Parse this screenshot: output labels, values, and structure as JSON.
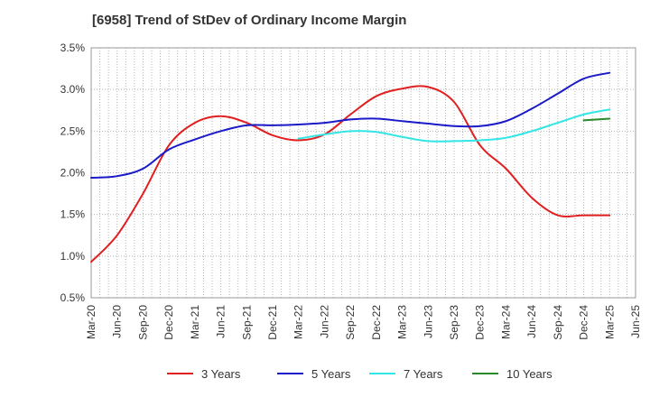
{
  "chart_data": {
    "type": "line",
    "title": "[6958]  Trend of StDev of Ordinary Income Margin",
    "xlabel": "",
    "ylabel": "",
    "x_ticks": [
      "Mar-20",
      "Jun-20",
      "Sep-20",
      "Dec-20",
      "Mar-21",
      "Jun-21",
      "Sep-21",
      "Dec-21",
      "Mar-22",
      "Jun-22",
      "Sep-22",
      "Dec-22",
      "Mar-23",
      "Jun-23",
      "Sep-23",
      "Dec-23",
      "Mar-24",
      "Jun-24",
      "Sep-24",
      "Dec-24",
      "Mar-25",
      "Jun-25"
    ],
    "y_ticks": [
      "0.5%",
      "1.0%",
      "1.5%",
      "2.0%",
      "2.5%",
      "3.0%",
      "3.5%"
    ],
    "ylim": [
      0.5,
      3.5
    ],
    "grid": "dotted both axes",
    "legend_position": "bottom",
    "series": [
      {
        "name": "3 Years",
        "color": "#e02020",
        "x": [
          "Mar-20",
          "Jun-20",
          "Sep-20",
          "Dec-20",
          "Mar-21",
          "Jun-21",
          "Sep-21",
          "Dec-21",
          "Mar-22",
          "Jun-22",
          "Sep-22",
          "Dec-22",
          "Mar-23",
          "Jun-23",
          "Sep-23",
          "Dec-23",
          "Mar-24",
          "Jun-24",
          "Sep-24",
          "Dec-24",
          "Mar-25"
        ],
        "values": [
          0.93,
          1.25,
          1.75,
          2.33,
          2.6,
          2.68,
          2.6,
          2.45,
          2.39,
          2.46,
          2.7,
          2.92,
          3.01,
          3.03,
          2.85,
          2.33,
          2.05,
          1.7,
          1.49,
          1.49,
          1.49
        ]
      },
      {
        "name": "5 Years",
        "color": "#1a1ac8",
        "x": [
          "Mar-20",
          "Jun-20",
          "Sep-20",
          "Dec-20",
          "Mar-21",
          "Jun-21",
          "Sep-21",
          "Dec-21",
          "Mar-22",
          "Jun-22",
          "Sep-22",
          "Dec-22",
          "Mar-23",
          "Jun-23",
          "Sep-23",
          "Dec-23",
          "Mar-24",
          "Jun-24",
          "Sep-24",
          "Dec-24",
          "Mar-25"
        ],
        "values": [
          1.94,
          1.96,
          2.05,
          2.28,
          2.4,
          2.5,
          2.57,
          2.57,
          2.58,
          2.6,
          2.64,
          2.65,
          2.62,
          2.59,
          2.56,
          2.56,
          2.62,
          2.77,
          2.95,
          3.13,
          3.2
        ]
      },
      {
        "name": "7 Years",
        "color": "#33e6e6",
        "x": [
          "Mar-22",
          "Jun-22",
          "Sep-22",
          "Dec-22",
          "Mar-23",
          "Jun-23",
          "Sep-23",
          "Dec-23",
          "Mar-24",
          "Jun-24",
          "Sep-24",
          "Dec-24",
          "Mar-25"
        ],
        "values": [
          2.41,
          2.46,
          2.5,
          2.49,
          2.43,
          2.38,
          2.38,
          2.39,
          2.42,
          2.5,
          2.6,
          2.7,
          2.76
        ]
      },
      {
        "name": "10 Years",
        "color": "#2a8a2a",
        "x": [
          "Dec-24",
          "Mar-25"
        ],
        "values": [
          2.63,
          2.65
        ]
      }
    ]
  }
}
